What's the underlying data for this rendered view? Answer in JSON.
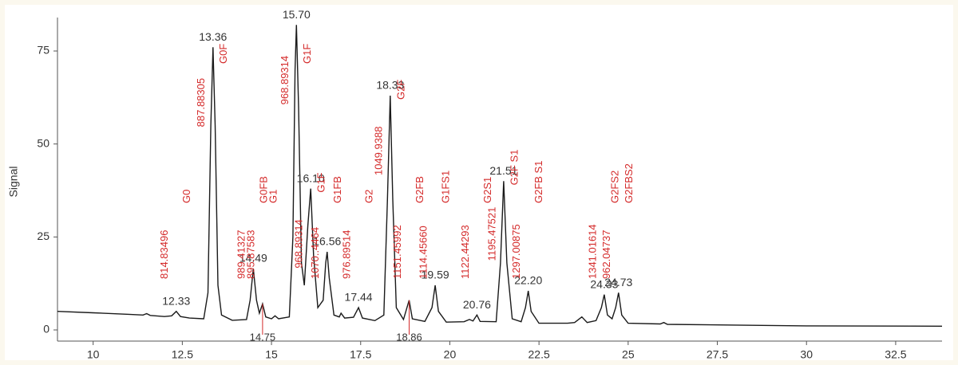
{
  "chart_data": {
    "type": "line",
    "y_label": "Signal",
    "color": "#1a1a1a",
    "xlim": [
      9,
      33.8
    ],
    "ylim": [
      -3,
      84
    ],
    "xticks": [
      10,
      12.5,
      15,
      17.5,
      20,
      22.5,
      25,
      27.5,
      30,
      32.5
    ],
    "yticks": [
      0,
      25,
      50,
      75
    ],
    "x": [
      9.0,
      10.0,
      11.0,
      11.4,
      11.5,
      11.6,
      12.0,
      12.2,
      12.33,
      12.45,
      12.7,
      13.1,
      13.22,
      13.3,
      13.36,
      13.42,
      13.5,
      13.6,
      13.9,
      14.3,
      14.4,
      14.49,
      14.58,
      14.66,
      14.75,
      14.84,
      15.0,
      15.1,
      15.2,
      15.5,
      15.6,
      15.66,
      15.7,
      15.76,
      15.84,
      15.92,
      16.02,
      16.1,
      16.18,
      16.3,
      16.45,
      16.52,
      16.56,
      16.62,
      16.75,
      16.9,
      16.95,
      17.05,
      17.3,
      17.44,
      17.55,
      17.9,
      18.15,
      18.25,
      18.33,
      18.4,
      18.5,
      18.7,
      18.86,
      18.95,
      19.3,
      19.5,
      19.59,
      19.68,
      19.9,
      20.4,
      20.55,
      20.65,
      20.76,
      20.85,
      21.3,
      21.42,
      21.51,
      21.6,
      21.75,
      22.0,
      22.12,
      22.2,
      22.28,
      22.5,
      23.3,
      23.5,
      23.7,
      23.85,
      24.1,
      24.25,
      24.33,
      24.42,
      24.55,
      24.65,
      24.73,
      24.82,
      25.0,
      25.9,
      26.0,
      26.1,
      28.0,
      30.0,
      33.8
    ],
    "values": [
      5.0,
      4.6,
      4.2,
      4.0,
      4.4,
      3.9,
      3.6,
      3.8,
      5.0,
      3.6,
      3.2,
      3.0,
      10,
      55,
      76,
      55,
      12,
      4,
      2.6,
      2.8,
      8,
      16.5,
      8,
      4.5,
      7,
      3.5,
      3.0,
      3.8,
      3.0,
      3.5,
      25,
      70,
      82,
      60,
      18,
      12,
      28,
      38,
      20,
      6,
      8,
      18,
      21,
      14,
      4,
      3.5,
      4.5,
      3.2,
      3.4,
      6,
      3.2,
      2.5,
      4,
      35,
      63,
      35,
      6,
      2.8,
      8,
      3,
      2.3,
      6,
      12,
      5,
      2.1,
      2.2,
      2.8,
      2.4,
      4,
      2.3,
      2.2,
      18,
      40,
      18,
      3,
      2.2,
      6,
      10.5,
      5,
      1.8,
      1.8,
      2.0,
      3.5,
      2.0,
      2.5,
      6,
      9.5,
      4,
      3,
      6,
      10,
      4,
      1.8,
      1.6,
      2.0,
      1.5,
      1.3,
      1.1,
      1.0
    ],
    "annotations": [
      {
        "x": 12.33,
        "y": 5.0,
        "label": "12.33",
        "mass": "814.83496",
        "glycan": "G0"
      },
      {
        "x": 13.36,
        "y": 76,
        "label": "13.36",
        "mass": "887.88305",
        "glycan": "G0F"
      },
      {
        "x": 14.49,
        "y": 16.5,
        "label": "14.49",
        "mass": "989.41327",
        "glycan": "G0FB"
      },
      {
        "x": 14.75,
        "y": 7,
        "label": "14.75",
        "mass": "895.87583",
        "glycan": "G1",
        "label_color": "#d42a2a"
      },
      {
        "x": 15.7,
        "y": 82,
        "label": "15.70",
        "mass": "968.89314",
        "glycan": "G1F"
      },
      {
        "x": 16.1,
        "y": 38,
        "label": "16.10",
        "mass": "968.89314",
        "glycan": "G1F"
      },
      {
        "x": 16.56,
        "y": 21,
        "label": "16.56",
        "mass": "1070..4464",
        "glycan": "G1FB"
      },
      {
        "x": 17.44,
        "y": 6,
        "label": "17.44",
        "mass": "976.89514",
        "glycan": "G2"
      },
      {
        "x": 18.33,
        "y": 63,
        "label": "18.33",
        "mass": "1049.9388",
        "glycan": "G2F"
      },
      {
        "x": 18.86,
        "y": 8,
        "label": "18.86",
        "mass": "1151.45992",
        "glycan": "G2FB",
        "label_color": "#d42a2a"
      },
      {
        "x": 19.59,
        "y": 12,
        "label": "19.59",
        "mass": "1114.45660",
        "glycan": "G1FS1"
      },
      {
        "x": 20.76,
        "y": 4,
        "label": "20.76",
        "mass": "1122.44293",
        "glycan": "G2S1"
      },
      {
        "x": 21.51,
        "y": 40,
        "label": "21.51",
        "mass": "1195.47521",
        "glycan": "G2F S1"
      },
      {
        "x": 22.2,
        "y": 10.5,
        "label": "22.20",
        "mass": "1297.00875",
        "glycan": "G2FB S1"
      },
      {
        "x": 24.33,
        "y": 9.5,
        "label": "24.33",
        "mass": "1341.01614",
        "glycan": "G2FS2"
      },
      {
        "x": 24.73,
        "y": 10,
        "label": "24.73",
        "mass": "962.04737",
        "glycan": "G2FBS2"
      }
    ]
  }
}
